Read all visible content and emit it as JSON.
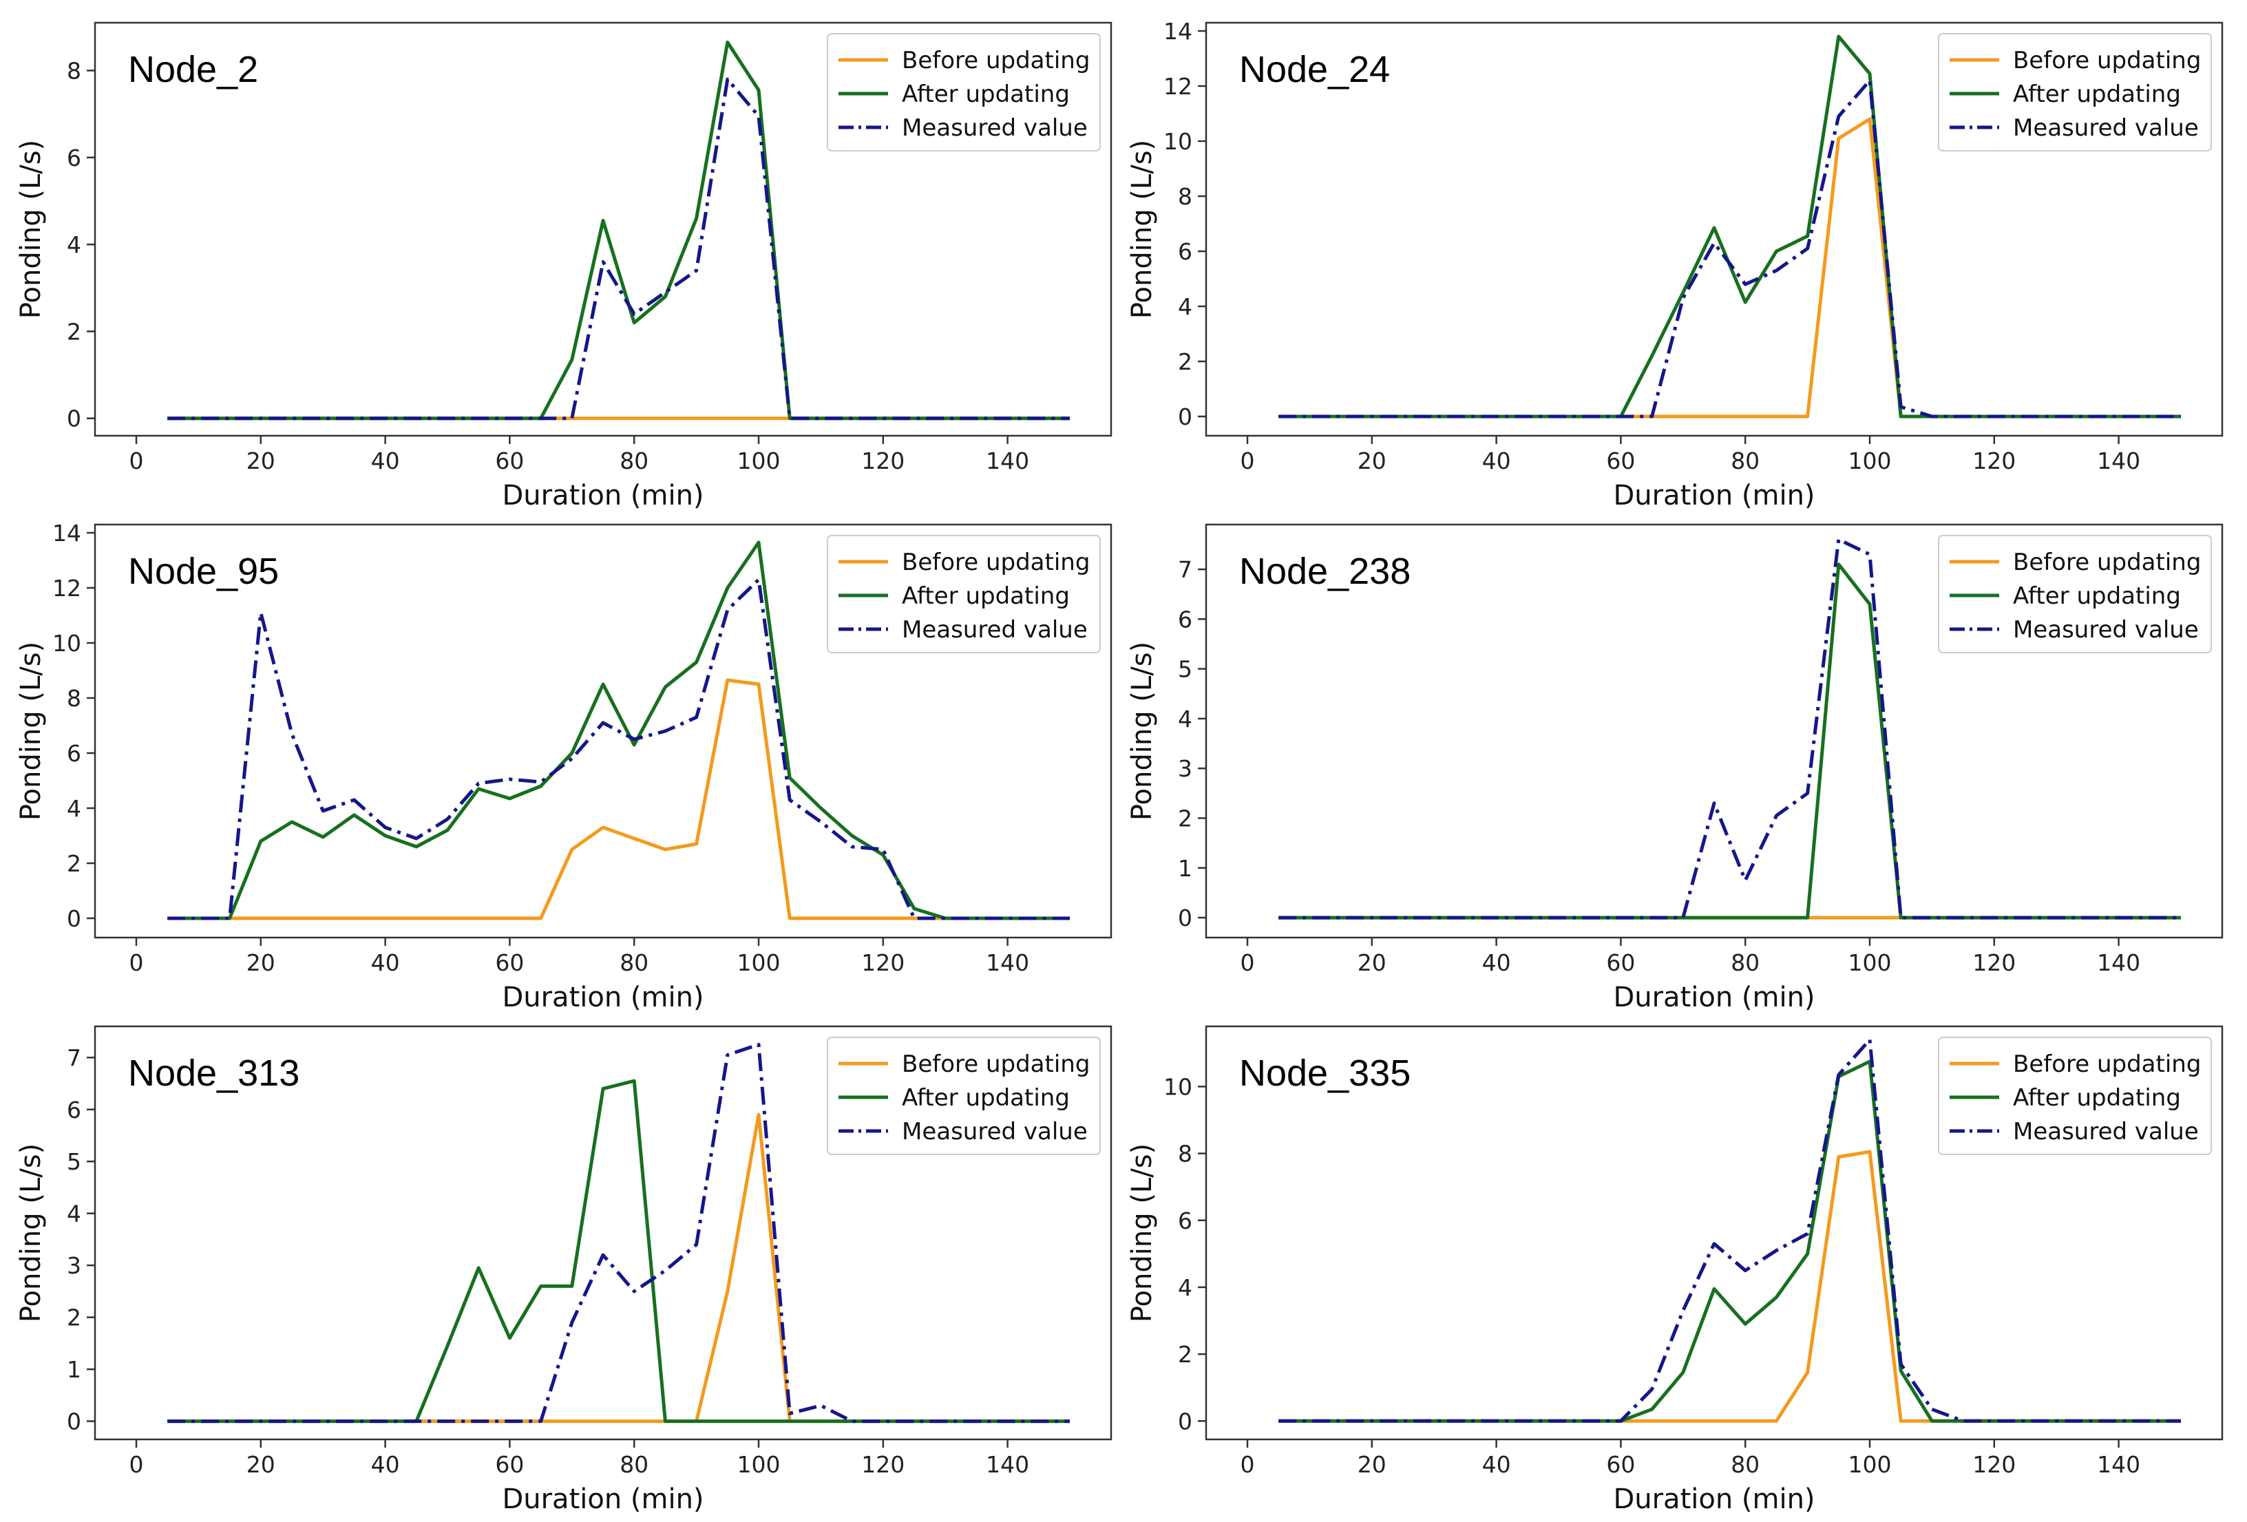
{
  "colors": {
    "before": "#f39a1e",
    "after": "#17701f",
    "measured": "#16168a",
    "frame": "#333333"
  },
  "chart_data": [
    {
      "type": "line",
      "title": "Node_2",
      "xlabel": "Duration (min)",
      "ylabel": "Ponding (L/s)",
      "xlim": [
        0,
        150
      ],
      "ylim": [
        -0.4,
        9.1
      ],
      "xticks": [
        0,
        20,
        40,
        60,
        80,
        100,
        120,
        140
      ],
      "yticks": [
        0,
        2,
        4,
        6,
        8
      ],
      "legend": "top-right",
      "grid": false,
      "x": [
        5,
        10,
        15,
        20,
        25,
        30,
        35,
        40,
        45,
        50,
        55,
        60,
        65,
        70,
        75,
        80,
        85,
        90,
        95,
        100,
        105,
        110,
        115,
        120,
        125,
        130,
        135,
        140,
        145,
        150
      ],
      "series": [
        {
          "name": "Before updating",
          "color_key": "before",
          "dash": "solid",
          "values": [
            0,
            0,
            0,
            0,
            0,
            0,
            0,
            0,
            0,
            0,
            0,
            0,
            0,
            0,
            0,
            0,
            0,
            0,
            0,
            0,
            0,
            0,
            0,
            0,
            0,
            0,
            0,
            0,
            0,
            0
          ]
        },
        {
          "name": "After updating",
          "color_key": "after",
          "dash": "solid",
          "values": [
            0,
            0,
            0,
            0,
            0,
            0,
            0,
            0,
            0,
            0,
            0,
            0,
            0,
            1.35,
            4.55,
            2.2,
            2.8,
            4.6,
            8.65,
            7.55,
            0,
            0,
            0,
            0,
            0,
            0,
            0,
            0,
            0,
            0
          ]
        },
        {
          "name": "Measured value",
          "color_key": "measured",
          "dash": "dashdot",
          "values": [
            0,
            0,
            0,
            0,
            0,
            0,
            0,
            0,
            0,
            0,
            0,
            0,
            0,
            0,
            3.6,
            2.4,
            2.9,
            3.4,
            7.8,
            6.95,
            0,
            0,
            0,
            0,
            0,
            0,
            0,
            0,
            0,
            0
          ]
        }
      ]
    },
    {
      "type": "line",
      "title": "Node_24",
      "xlabel": "Duration (min)",
      "ylabel": "Ponding (L/s)",
      "xlim": [
        0,
        150
      ],
      "ylim": [
        -0.7,
        14.3
      ],
      "xticks": [
        0,
        20,
        40,
        60,
        80,
        100,
        120,
        140
      ],
      "yticks": [
        0,
        2,
        4,
        6,
        8,
        10,
        12,
        14
      ],
      "legend": "top-right",
      "grid": false,
      "x": [
        5,
        10,
        15,
        20,
        25,
        30,
        35,
        40,
        45,
        50,
        55,
        60,
        65,
        70,
        75,
        80,
        85,
        90,
        95,
        100,
        105,
        110,
        115,
        120,
        125,
        130,
        135,
        140,
        145,
        150
      ],
      "series": [
        {
          "name": "Before updating",
          "color_key": "before",
          "dash": "solid",
          "values": [
            0,
            0,
            0,
            0,
            0,
            0,
            0,
            0,
            0,
            0,
            0,
            0,
            0,
            0,
            0,
            0,
            0,
            0,
            10.1,
            10.8,
            0,
            0,
            0,
            0,
            0,
            0,
            0,
            0,
            0,
            0
          ]
        },
        {
          "name": "After updating",
          "color_key": "after",
          "dash": "solid",
          "values": [
            0,
            0,
            0,
            0,
            0,
            0,
            0,
            0,
            0,
            0,
            0,
            0,
            2.2,
            4.5,
            6.85,
            4.15,
            6.0,
            6.55,
            13.8,
            12.45,
            0,
            0,
            0,
            0,
            0,
            0,
            0,
            0,
            0,
            0
          ]
        },
        {
          "name": "Measured value",
          "color_key": "measured",
          "dash": "dashdot",
          "values": [
            0,
            0,
            0,
            0,
            0,
            0,
            0,
            0,
            0,
            0,
            0,
            0,
            0,
            4.3,
            6.3,
            4.8,
            5.3,
            6.1,
            10.9,
            12.2,
            0.35,
            0,
            0,
            0,
            0,
            0,
            0,
            0,
            0,
            0
          ]
        }
      ]
    },
    {
      "type": "line",
      "title": "Node_95",
      "xlabel": "Duration (min)",
      "ylabel": "Ponding (L/s)",
      "xlim": [
        0,
        150
      ],
      "ylim": [
        -0.7,
        14.3
      ],
      "xticks": [
        0,
        20,
        40,
        60,
        80,
        100,
        120,
        140
      ],
      "yticks": [
        0,
        2,
        4,
        6,
        8,
        10,
        12,
        14
      ],
      "legend": "top-right",
      "grid": false,
      "x": [
        5,
        10,
        15,
        20,
        25,
        30,
        35,
        40,
        45,
        50,
        55,
        60,
        65,
        70,
        75,
        80,
        85,
        90,
        95,
        100,
        105,
        110,
        115,
        120,
        125,
        130,
        135,
        140,
        145,
        150
      ],
      "series": [
        {
          "name": "Before updating",
          "color_key": "before",
          "dash": "solid",
          "values": [
            0,
            0,
            0,
            0,
            0,
            0,
            0,
            0,
            0,
            0,
            0,
            0,
            0,
            2.5,
            3.3,
            2.9,
            2.5,
            2.7,
            8.65,
            8.5,
            0,
            0,
            0,
            0,
            0,
            0,
            0,
            0,
            0,
            0
          ]
        },
        {
          "name": "After updating",
          "color_key": "after",
          "dash": "solid",
          "values": [
            0,
            0,
            0,
            2.8,
            3.5,
            2.95,
            3.75,
            3.0,
            2.6,
            3.2,
            4.7,
            4.35,
            4.8,
            6.0,
            8.5,
            6.3,
            8.4,
            9.3,
            12.0,
            13.65,
            5.1,
            4.0,
            3.0,
            2.3,
            0.35,
            0,
            0,
            0,
            0,
            0
          ]
        },
        {
          "name": "Measured value",
          "color_key": "measured",
          "dash": "dashdot",
          "values": [
            0,
            0,
            0,
            11.1,
            6.7,
            3.9,
            4.3,
            3.3,
            2.9,
            3.6,
            4.9,
            5.05,
            4.95,
            5.8,
            7.1,
            6.5,
            6.8,
            7.3,
            11.2,
            12.3,
            4.3,
            3.5,
            2.6,
            2.5,
            0,
            0,
            0,
            0,
            0,
            0
          ]
        }
      ]
    },
    {
      "type": "line",
      "title": "Node_238",
      "xlabel": "Duration (min)",
      "ylabel": "Ponding (L/s)",
      "xlim": [
        0,
        150
      ],
      "ylim": [
        -0.4,
        7.9
      ],
      "xticks": [
        0,
        20,
        40,
        60,
        80,
        100,
        120,
        140
      ],
      "yticks": [
        0,
        1,
        2,
        3,
        4,
        5,
        6,
        7
      ],
      "legend": "top-right",
      "grid": false,
      "x": [
        5,
        10,
        15,
        20,
        25,
        30,
        35,
        40,
        45,
        50,
        55,
        60,
        65,
        70,
        75,
        80,
        85,
        90,
        95,
        100,
        105,
        110,
        115,
        120,
        125,
        130,
        135,
        140,
        145,
        150
      ],
      "series": [
        {
          "name": "Before updating",
          "color_key": "before",
          "dash": "solid",
          "values": [
            0,
            0,
            0,
            0,
            0,
            0,
            0,
            0,
            0,
            0,
            0,
            0,
            0,
            0,
            0,
            0,
            0,
            0,
            0,
            0,
            0,
            0,
            0,
            0,
            0,
            0,
            0,
            0,
            0,
            0
          ]
        },
        {
          "name": "After updating",
          "color_key": "after",
          "dash": "solid",
          "values": [
            0,
            0,
            0,
            0,
            0,
            0,
            0,
            0,
            0,
            0,
            0,
            0,
            0,
            0,
            0,
            0,
            0,
            0,
            7.1,
            6.3,
            0,
            0,
            0,
            0,
            0,
            0,
            0,
            0,
            0,
            0
          ]
        },
        {
          "name": "Measured value",
          "color_key": "measured",
          "dash": "dashdot",
          "values": [
            0,
            0,
            0,
            0,
            0,
            0,
            0,
            0,
            0,
            0,
            0,
            0,
            0,
            0,
            2.3,
            0.75,
            2.05,
            2.5,
            7.6,
            7.3,
            0,
            0,
            0,
            0,
            0,
            0,
            0,
            0,
            0,
            0
          ]
        }
      ]
    },
    {
      "type": "line",
      "title": "Node_313",
      "xlabel": "Duration (min)",
      "ylabel": "Ponding (L/s)",
      "xlim": [
        0,
        150
      ],
      "ylim": [
        -0.35,
        7.6
      ],
      "xticks": [
        0,
        20,
        40,
        60,
        80,
        100,
        120,
        140
      ],
      "yticks": [
        0,
        1,
        2,
        3,
        4,
        5,
        6,
        7
      ],
      "legend": "top-right",
      "grid": false,
      "x": [
        5,
        10,
        15,
        20,
        25,
        30,
        35,
        40,
        45,
        50,
        55,
        60,
        65,
        70,
        75,
        80,
        85,
        90,
        95,
        100,
        105,
        110,
        115,
        120,
        125,
        130,
        135,
        140,
        145,
        150
      ],
      "series": [
        {
          "name": "Before updating",
          "color_key": "before",
          "dash": "solid",
          "values": [
            0,
            0,
            0,
            0,
            0,
            0,
            0,
            0,
            0,
            0,
            0,
            0,
            0,
            0,
            0,
            0,
            0,
            0,
            2.5,
            5.9,
            0,
            0,
            0,
            0,
            0,
            0,
            0,
            0,
            0,
            0
          ]
        },
        {
          "name": "After updating",
          "color_key": "after",
          "dash": "solid",
          "values": [
            0,
            0,
            0,
            0,
            0,
            0,
            0,
            0,
            0,
            1.45,
            2.95,
            1.6,
            2.6,
            2.6,
            6.4,
            6.55,
            0,
            0,
            0,
            0,
            0,
            0,
            0,
            0,
            0,
            0,
            0,
            0,
            0,
            0
          ]
        },
        {
          "name": "Measured value",
          "color_key": "measured",
          "dash": "dashdot",
          "values": [
            0,
            0,
            0,
            0,
            0,
            0,
            0,
            0,
            0,
            0,
            0,
            0,
            0,
            1.9,
            3.2,
            2.5,
            2.9,
            3.4,
            7.05,
            7.25,
            0.15,
            0.3,
            0,
            0,
            0,
            0,
            0,
            0,
            0,
            0
          ]
        }
      ]
    },
    {
      "type": "line",
      "title": "Node_335",
      "xlabel": "Duration (min)",
      "ylabel": "Ponding (L/s)",
      "xlim": [
        0,
        150
      ],
      "ylim": [
        -0.55,
        11.8
      ],
      "xticks": [
        0,
        20,
        40,
        60,
        80,
        100,
        120,
        140
      ],
      "yticks": [
        0,
        2,
        4,
        6,
        8,
        10
      ],
      "legend": "top-right",
      "grid": false,
      "x": [
        5,
        10,
        15,
        20,
        25,
        30,
        35,
        40,
        45,
        50,
        55,
        60,
        65,
        70,
        75,
        80,
        85,
        90,
        95,
        100,
        105,
        110,
        115,
        120,
        125,
        130,
        135,
        140,
        145,
        150
      ],
      "series": [
        {
          "name": "Before updating",
          "color_key": "before",
          "dash": "solid",
          "values": [
            0,
            0,
            0,
            0,
            0,
            0,
            0,
            0,
            0,
            0,
            0,
            0,
            0,
            0,
            0,
            0,
            0,
            1.45,
            7.9,
            8.05,
            0,
            0,
            0,
            0,
            0,
            0,
            0,
            0,
            0,
            0
          ]
        },
        {
          "name": "After updating",
          "color_key": "after",
          "dash": "solid",
          "values": [
            0,
            0,
            0,
            0,
            0,
            0,
            0,
            0,
            0,
            0,
            0,
            0,
            0.35,
            1.45,
            3.95,
            2.9,
            3.7,
            5.0,
            10.3,
            10.75,
            1.5,
            0,
            0,
            0,
            0,
            0,
            0,
            0,
            0,
            0
          ]
        },
        {
          "name": "Measured value",
          "color_key": "measured",
          "dash": "dashdot",
          "values": [
            0,
            0,
            0,
            0,
            0,
            0,
            0,
            0,
            0,
            0,
            0,
            0,
            0.95,
            3.3,
            5.3,
            4.5,
            5.1,
            5.6,
            10.35,
            11.4,
            1.7,
            0.35,
            0,
            0,
            0,
            0,
            0,
            0,
            0,
            0
          ]
        }
      ]
    }
  ]
}
